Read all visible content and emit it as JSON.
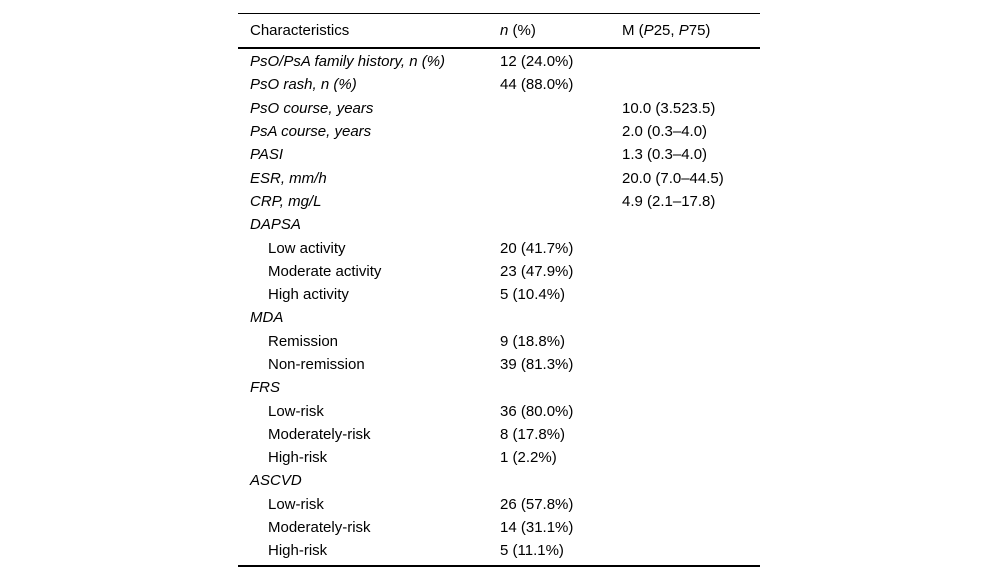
{
  "page": {
    "background": "#ffffff",
    "text_color": "#000000",
    "rule_color": "#000000"
  },
  "chart_data": {
    "type": "table",
    "title": "",
    "columns": [
      "Characteristics",
      "n (%)",
      "M (P25, P75)"
    ],
    "rows": [
      {
        "label": "PsO/PsA family history, n (%)",
        "italic": true,
        "indent": false,
        "n": "12 (24.0%)",
        "m": ""
      },
      {
        "label": "PsO rash, n (%)",
        "italic": true,
        "indent": false,
        "n": "44 (88.0%)",
        "m": ""
      },
      {
        "label": "PsO course, years",
        "italic": true,
        "indent": false,
        "n": "",
        "m": "10.0 (3.523.5)"
      },
      {
        "label": "PsA course, years",
        "italic": true,
        "indent": false,
        "n": "",
        "m": "2.0 (0.3–4.0)"
      },
      {
        "label": "PASI",
        "italic": true,
        "indent": false,
        "n": "",
        "m": "1.3 (0.3–4.0)"
      },
      {
        "label": "ESR, mm/h",
        "italic": true,
        "indent": false,
        "n": "",
        "m": "20.0 (7.0–44.5)"
      },
      {
        "label": "CRP, mg/L",
        "italic": true,
        "indent": false,
        "n": "",
        "m": "4.9 (2.1–17.8)"
      },
      {
        "label": "DAPSA",
        "italic": true,
        "indent": false,
        "n": "",
        "m": ""
      },
      {
        "label": "Low activity",
        "italic": false,
        "indent": true,
        "n": "20 (41.7%)",
        "m": ""
      },
      {
        "label": "Moderate activity",
        "italic": false,
        "indent": true,
        "n": "23 (47.9%)",
        "m": ""
      },
      {
        "label": "High activity",
        "italic": false,
        "indent": true,
        "n": "5 (10.4%)",
        "m": ""
      },
      {
        "label": "MDA",
        "italic": true,
        "indent": false,
        "n": "",
        "m": ""
      },
      {
        "label": "Remission",
        "italic": false,
        "indent": true,
        "n": "9 (18.8%)",
        "m": ""
      },
      {
        "label": "Non-remission",
        "italic": false,
        "indent": true,
        "n": "39 (81.3%)",
        "m": ""
      },
      {
        "label": "FRS",
        "italic": true,
        "indent": false,
        "n": "",
        "m": ""
      },
      {
        "label": "Low-risk",
        "italic": false,
        "indent": true,
        "n": "36 (80.0%)",
        "m": ""
      },
      {
        "label": "Moderately-risk",
        "italic": false,
        "indent": true,
        "n": "8 (17.8%)",
        "m": ""
      },
      {
        "label": "High-risk",
        "italic": false,
        "indent": true,
        "n": "1 (2.2%)",
        "m": ""
      },
      {
        "label": "ASCVD",
        "italic": true,
        "indent": false,
        "n": "",
        "m": ""
      },
      {
        "label": "Low-risk",
        "italic": false,
        "indent": true,
        "n": "26 (57.8%)",
        "m": ""
      },
      {
        "label": "Moderately-risk",
        "italic": false,
        "indent": true,
        "n": "14 (31.1%)",
        "m": ""
      },
      {
        "label": "High-risk",
        "italic": false,
        "indent": true,
        "n": "5 (11.1%)",
        "m": ""
      }
    ],
    "header_segments": {
      "characteristics": [
        {
          "t": "Characteristics",
          "i": false
        }
      ],
      "n_percent": [
        {
          "t": "n",
          "i": true
        },
        {
          "t": " (%)",
          "i": false
        }
      ],
      "median": [
        {
          "t": "M (",
          "i": false
        },
        {
          "t": "P",
          "i": true
        },
        {
          "t": "25, ",
          "i": false
        },
        {
          "t": "P",
          "i": true
        },
        {
          "t": "75)",
          "i": false
        }
      ]
    }
  }
}
